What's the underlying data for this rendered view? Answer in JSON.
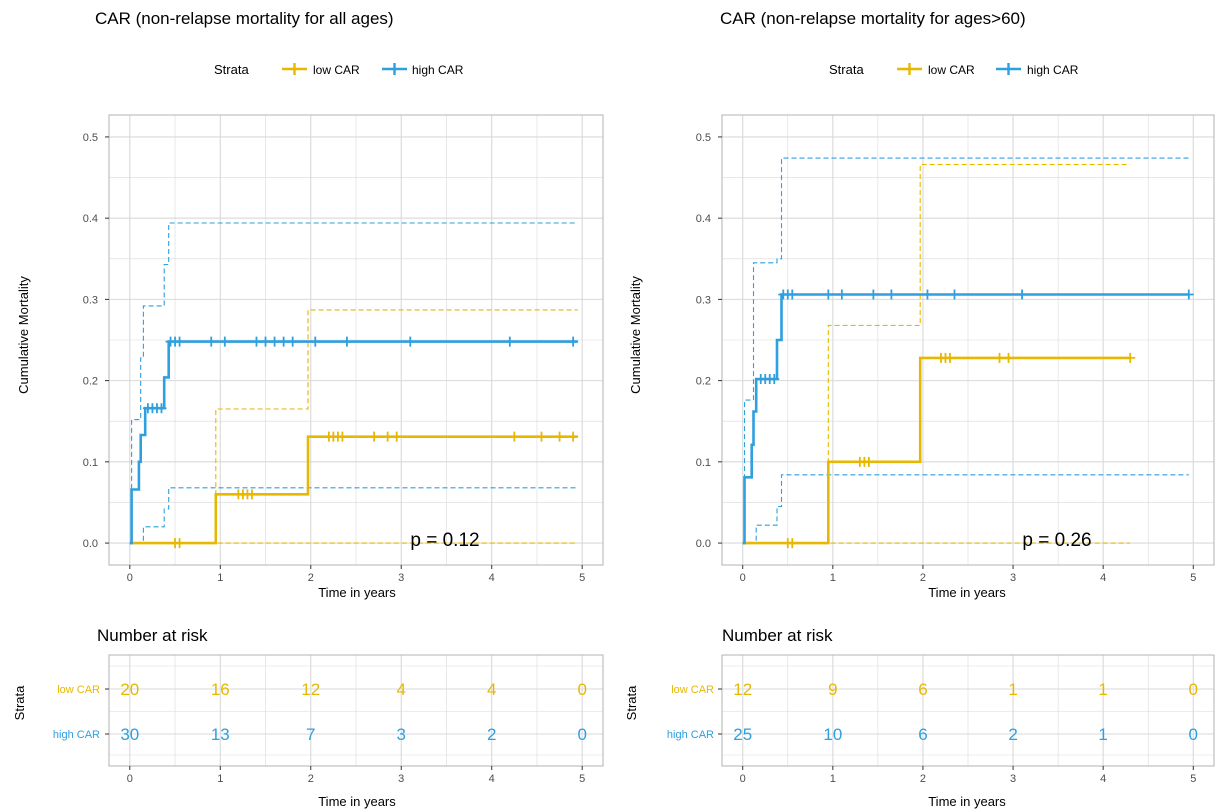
{
  "colors": {
    "low": "#E7B800",
    "high": "#2E9FDF",
    "grid": "#d9d9d9",
    "border": "#b3b3b3"
  },
  "panels": [
    {
      "title": "CAR (non-relapse mortality for all ages)",
      "legend": {
        "title": "Strata",
        "items": [
          "low CAR",
          "high CAR"
        ]
      },
      "ylabel": "Cumulative Mortality",
      "xlabel": "Time in years",
      "y_ticks": [
        "0.0",
        "0.1",
        "0.2",
        "0.3",
        "0.4",
        "0.5"
      ],
      "x_ticks": [
        "0",
        "1",
        "2",
        "3",
        "4",
        "5"
      ],
      "pvalue": "p = 0.12",
      "risk_title": "Number at risk",
      "risk_ylabel": "Strata",
      "risk_xlabel": "Time in years",
      "risk_rows": [
        {
          "label": "low CAR",
          "values": [
            "20",
            "16",
            "12",
            "4",
            "4",
            "0"
          ]
        },
        {
          "label": "high CAR",
          "values": [
            "30",
            "13",
            "7",
            "3",
            "2",
            "0"
          ]
        }
      ]
    },
    {
      "title": "CAR (non-relapse mortality for ages>60)",
      "legend": {
        "title": "Strata",
        "items": [
          "low CAR",
          "high CAR"
        ]
      },
      "ylabel": "Cumulative Mortality",
      "xlabel": "Time in years",
      "y_ticks": [
        "0.0",
        "0.1",
        "0.2",
        "0.3",
        "0.4",
        "0.5"
      ],
      "x_ticks": [
        "0",
        "1",
        "2",
        "3",
        "4",
        "5"
      ],
      "pvalue": "p = 0.26",
      "risk_title": "Number at risk",
      "risk_ylabel": "Strata",
      "risk_xlabel": "Time in years",
      "risk_rows": [
        {
          "label": "low CAR",
          "values": [
            "12",
            "9",
            "6",
            "1",
            "1",
            "0"
          ]
        },
        {
          "label": "high CAR",
          "values": [
            "25",
            "10",
            "6",
            "2",
            "1",
            "0"
          ]
        }
      ]
    }
  ],
  "chart_data": [
    {
      "type": "line",
      "title": "CAR (non-relapse mortality for all ages)",
      "xlabel": "Time in years",
      "ylabel": "Cumulative Mortality",
      "xlim": [
        0,
        5
      ],
      "ylim": [
        0,
        0.5
      ],
      "grid": true,
      "legend_position": "top",
      "series": [
        {
          "name": "low CAR",
          "step": [
            [
              0,
              0
            ],
            [
              0.95,
              0
            ],
            [
              0.95,
              0.06
            ],
            [
              1.97,
              0.06
            ],
            [
              1.97,
              0.131
            ],
            [
              4.95,
              0.131
            ]
          ],
          "ci_upper": [
            [
              0.95,
              0
            ],
            [
              0.95,
              0.165
            ],
            [
              1.97,
              0.165
            ],
            [
              1.97,
              0.287
            ],
            [
              4.95,
              0.287
            ]
          ],
          "ci_lower": [
            [
              0,
              0
            ],
            [
              4.95,
              0
            ]
          ],
          "censor_x": [
            0.5,
            0.55,
            1.2,
            1.25,
            1.3,
            1.35,
            2.2,
            2.25,
            2.3,
            2.35,
            2.7,
            2.85,
            2.95,
            4.25,
            4.55,
            4.75,
            4.9
          ]
        },
        {
          "name": "high CAR",
          "step": [
            [
              0,
              0
            ],
            [
              0.02,
              0
            ],
            [
              0.02,
              0.066
            ],
            [
              0.1,
              0.066
            ],
            [
              0.1,
              0.1
            ],
            [
              0.12,
              0.1
            ],
            [
              0.12,
              0.133
            ],
            [
              0.17,
              0.133
            ],
            [
              0.17,
              0.166
            ],
            [
              0.38,
              0.166
            ],
            [
              0.38,
              0.204
            ],
            [
              0.43,
              0.204
            ],
            [
              0.43,
              0.248
            ],
            [
              4.95,
              0.248
            ]
          ],
          "ci_upper": [
            [
              0,
              0
            ],
            [
              0.02,
              0
            ],
            [
              0.02,
              0.152
            ],
            [
              0.12,
              0.152
            ],
            [
              0.12,
              0.228
            ],
            [
              0.15,
              0.228
            ],
            [
              0.15,
              0.292
            ],
            [
              0.38,
              0.292
            ],
            [
              0.38,
              0.343
            ],
            [
              0.43,
              0.343
            ],
            [
              0.43,
              0.394
            ],
            [
              4.95,
              0.394
            ]
          ],
          "ci_lower": [
            [
              0,
              0
            ],
            [
              0.15,
              0
            ],
            [
              0.15,
              0.02
            ],
            [
              0.38,
              0.02
            ],
            [
              0.38,
              0.042
            ],
            [
              0.43,
              0.042
            ],
            [
              0.43,
              0.068
            ],
            [
              4.95,
              0.068
            ]
          ],
          "censor_x": [
            0.2,
            0.25,
            0.3,
            0.35,
            0.45,
            0.5,
            0.55,
            0.9,
            1.05,
            1.4,
            1.5,
            1.6,
            1.7,
            1.8,
            2.05,
            2.4,
            3.1,
            4.2,
            4.9
          ]
        }
      ],
      "annotation": "p = 0.12"
    },
    {
      "type": "line",
      "title": "CAR (non-relapse mortality for ages>60)",
      "xlabel": "Time in years",
      "ylabel": "Cumulative Mortality",
      "xlim": [
        0,
        5
      ],
      "ylim": [
        0,
        0.5
      ],
      "grid": true,
      "legend_position": "top",
      "series": [
        {
          "name": "low CAR",
          "step": [
            [
              0,
              0
            ],
            [
              0.95,
              0
            ],
            [
              0.95,
              0.1
            ],
            [
              1.97,
              0.1
            ],
            [
              1.97,
              0.228
            ],
            [
              4.3,
              0.228
            ]
          ],
          "ci_upper": [
            [
              0.95,
              0
            ],
            [
              0.95,
              0.268
            ],
            [
              1.97,
              0.268
            ],
            [
              1.97,
              0.466
            ],
            [
              4.3,
              0.466
            ]
          ],
          "ci_lower": [
            [
              0,
              0
            ],
            [
              4.3,
              0
            ]
          ],
          "censor_x": [
            0.5,
            0.55,
            1.3,
            1.35,
            1.4,
            2.2,
            2.25,
            2.3,
            2.85,
            2.95,
            4.3
          ]
        },
        {
          "name": "high CAR",
          "step": [
            [
              0,
              0
            ],
            [
              0.02,
              0
            ],
            [
              0.02,
              0.081
            ],
            [
              0.1,
              0.081
            ],
            [
              0.1,
              0.121
            ],
            [
              0.12,
              0.121
            ],
            [
              0.12,
              0.162
            ],
            [
              0.15,
              0.162
            ],
            [
              0.15,
              0.202
            ],
            [
              0.38,
              0.202
            ],
            [
              0.38,
              0.25
            ],
            [
              0.43,
              0.25
            ],
            [
              0.43,
              0.306
            ],
            [
              4.95,
              0.306
            ]
          ],
          "ci_upper": [
            [
              0.02,
              0
            ],
            [
              0.02,
              0.176
            ],
            [
              0.12,
              0.176
            ],
            [
              0.12,
              0.345
            ],
            [
              0.38,
              0.345
            ],
            [
              0.38,
              0.35
            ],
            [
              0.43,
              0.35
            ],
            [
              0.43,
              0.474
            ],
            [
              4.95,
              0.474
            ]
          ],
          "ci_lower": [
            [
              0,
              0
            ],
            [
              0.15,
              0
            ],
            [
              0.15,
              0.022
            ],
            [
              0.38,
              0.022
            ],
            [
              0.38,
              0.045
            ],
            [
              0.43,
              0.045
            ],
            [
              0.43,
              0.084
            ],
            [
              4.95,
              0.084
            ]
          ],
          "censor_x": [
            0.2,
            0.25,
            0.3,
            0.35,
            0.45,
            0.5,
            0.55,
            0.95,
            1.1,
            1.45,
            1.65,
            2.05,
            2.35,
            3.1,
            4.95
          ]
        }
      ],
      "annotation": "p = 0.26"
    }
  ]
}
